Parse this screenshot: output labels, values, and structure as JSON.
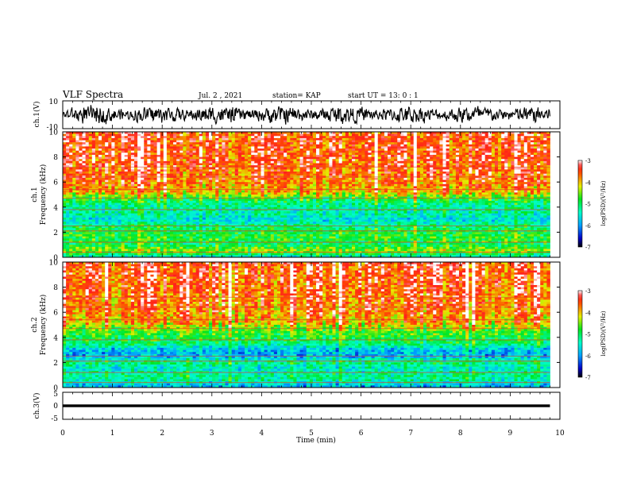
{
  "header": {
    "title": "VLF Spectra",
    "date": "Jul. 2 , 2021",
    "station": "station= KAP",
    "start": "start UT = 13: 0 : 1"
  },
  "chart_data": [
    {
      "type": "line",
      "ylabel": "ch.1(V)",
      "ylim": [
        -10,
        10
      ],
      "y_ticks": [
        "10",
        "-10"
      ],
      "xlim": [
        0,
        10
      ],
      "x_range_data": [
        0,
        9.8
      ],
      "description_series": "waveform",
      "color": "#000000",
      "amplitude_range": [
        -7,
        7
      ]
    },
    {
      "type": "heatmap",
      "ylabel": "ch.1\nFrequency (kHz)",
      "ylabel_lines": [
        "ch.1",
        "Frequency (kHz)"
      ],
      "ylim": [
        0,
        10
      ],
      "y_ticks": [
        "0",
        "2",
        "4",
        "6",
        "8",
        "10"
      ],
      "xlim": [
        0,
        10
      ],
      "x_range_data": [
        0,
        9.8
      ],
      "colorbar": {
        "label": "log(PSD)(V²/Hz)",
        "range": [
          -7,
          -3
        ],
        "ticks": [
          "-3",
          "-4",
          "-5",
          "-6",
          "-7"
        ]
      },
      "frequency_profile_kHz": [
        [
          0,
          -5.6
        ],
        [
          0.5,
          -4.4
        ],
        [
          1.0,
          -5.0
        ],
        [
          1.5,
          -4.8
        ],
        [
          2.0,
          -4.9
        ],
        [
          2.5,
          -5.1
        ],
        [
          3.0,
          -5.6
        ],
        [
          3.5,
          -5.3
        ],
        [
          4.0,
          -5.3
        ],
        [
          4.6,
          -4.9
        ],
        [
          5.2,
          -4.0
        ],
        [
          6.0,
          -3.7
        ],
        [
          8.0,
          -3.5
        ],
        [
          10.0,
          -3.5
        ]
      ]
    },
    {
      "type": "heatmap",
      "ylabel": "ch.2\nFrequency (kHz)",
      "ylabel_lines": [
        "ch.2",
        "Frequency (kHz)"
      ],
      "ylim": [
        0,
        10
      ],
      "y_ticks": [
        "0",
        "2",
        "4",
        "6",
        "8",
        "10"
      ],
      "xlim": [
        0,
        10
      ],
      "x_range_data": [
        0,
        9.8
      ],
      "colorbar": {
        "label": "log(PSD)(V²/Hz)",
        "range": [
          -7,
          -3
        ],
        "ticks": [
          "-3",
          "-4",
          "-5",
          "-6",
          "-7"
        ]
      },
      "frequency_profile_kHz": [
        [
          0,
          -6.0
        ],
        [
          0.5,
          -5.4
        ],
        [
          1.0,
          -5.2
        ],
        [
          1.5,
          -5.5
        ],
        [
          2.0,
          -5.1
        ],
        [
          2.5,
          -5.9
        ],
        [
          3.0,
          -5.8
        ],
        [
          3.5,
          -5.1
        ],
        [
          4.0,
          -4.9
        ],
        [
          4.6,
          -4.6
        ],
        [
          5.2,
          -4.0
        ],
        [
          6.0,
          -3.8
        ],
        [
          8.0,
          -3.6
        ],
        [
          10.0,
          -3.5
        ]
      ]
    },
    {
      "type": "line",
      "ylabel": "ch.3(V)",
      "ylim": [
        -5,
        5
      ],
      "y_ticks": [
        "5",
        "0",
        "-5"
      ],
      "xlim": [
        0,
        10
      ],
      "x_range_data": [
        0,
        9.8
      ],
      "color": "#000000",
      "amplitude_range": [
        -0.5,
        0.5
      ],
      "xlabel": "Time (min)",
      "x_ticks": [
        "0",
        "1",
        "2",
        "3",
        "4",
        "5",
        "6",
        "7",
        "8",
        "9",
        "10"
      ]
    }
  ]
}
